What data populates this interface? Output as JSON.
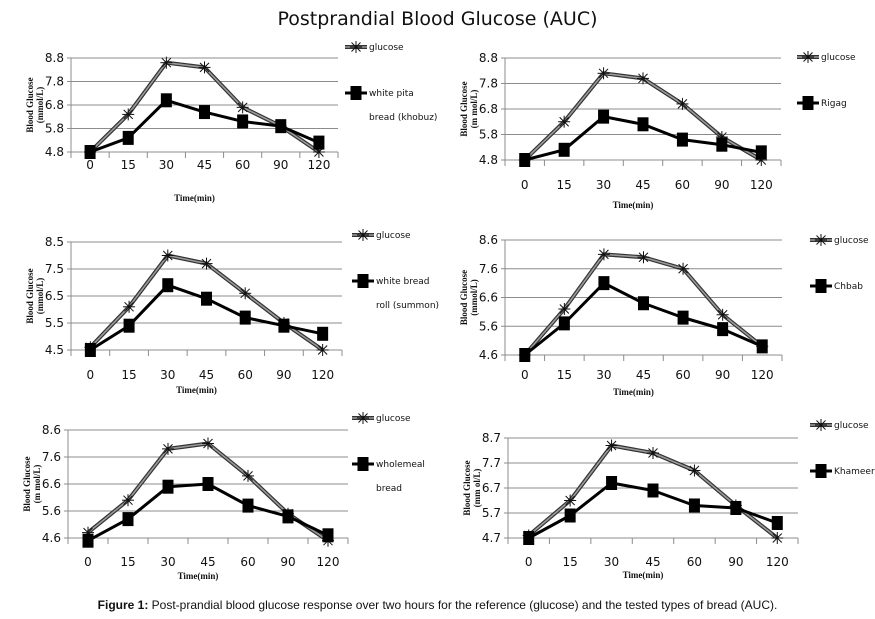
{
  "title": "Postprandial Blood Glucose (AUC)",
  "caption": {
    "label": "Figure 1:",
    "text": " Post-prandial blood glucose response over two hours for the reference (glucose) and the tested types of bread (AUC)."
  },
  "colors": {
    "glucose_line": "#6b6b6b",
    "bread_line": "#000000",
    "grid": "#8c8c8c",
    "axis": "#8c8c8c"
  },
  "chart_data": [
    {
      "type": "line",
      "panel": "top-left",
      "categories": [
        "0",
        "15",
        "30",
        "45",
        "60",
        "90",
        "120"
      ],
      "xlabel": "Time(min)",
      "ylabel": [
        "Blood Glucose",
        "(mmol/L)"
      ],
      "yticks": [
        "4.8",
        "5.8",
        "6.8",
        "7.8",
        "8.8"
      ],
      "ylim": [
        4.8,
        8.8
      ],
      "grid": true,
      "legend_position": "right",
      "series": [
        {
          "name": "glucose",
          "marker": "asterisk",
          "values": [
            4.8,
            6.4,
            8.6,
            8.4,
            6.7,
            5.9,
            4.8
          ]
        },
        {
          "name": "white pita bread (khobuz)",
          "legend_lines": [
            "white pita",
            "bread (khobuz)"
          ],
          "marker": "square",
          "values": [
            4.8,
            5.4,
            7.0,
            6.5,
            6.1,
            5.9,
            5.2
          ]
        }
      ]
    },
    {
      "type": "line",
      "panel": "top-right",
      "categories": [
        "0",
        "15",
        "30",
        "45",
        "60",
        "90",
        "120"
      ],
      "xlabel": "Time(min)",
      "ylabel": [
        "Blood Glucose",
        "(m mol/L)"
      ],
      "yticks": [
        "4.8",
        "5.8",
        "6.8",
        "7.8",
        "8.8"
      ],
      "ylim": [
        4.8,
        8.8
      ],
      "grid": true,
      "legend_position": "right",
      "series": [
        {
          "name": "glucose",
          "marker": "asterisk",
          "values": [
            4.8,
            6.3,
            8.2,
            8.0,
            7.0,
            5.7,
            4.8
          ]
        },
        {
          "name": "Rigag",
          "legend_lines": [
            "Rigag"
          ],
          "marker": "square",
          "values": [
            4.8,
            5.2,
            6.5,
            6.2,
            5.6,
            5.4,
            5.1
          ]
        }
      ]
    },
    {
      "type": "line",
      "panel": "middle-left",
      "categories": [
        "0",
        "15",
        "30",
        "45",
        "60",
        "90",
        "120"
      ],
      "xlabel": "Time(min)",
      "ylabel": [
        "Blood Glucose",
        "(mmol/L)"
      ],
      "yticks": [
        "4.5",
        "5.5",
        "6.5",
        "7.5",
        "8.5"
      ],
      "ylim": [
        4.5,
        8.5
      ],
      "grid": true,
      "legend_position": "right",
      "series": [
        {
          "name": "glucose",
          "marker": "asterisk",
          "values": [
            4.6,
            6.1,
            8.0,
            7.7,
            6.6,
            5.5,
            4.5
          ]
        },
        {
          "name": "white bread roll (summon)",
          "legend_lines": [
            "white bread",
            "roll (summon)"
          ],
          "marker": "square",
          "values": [
            4.5,
            5.4,
            6.9,
            6.4,
            5.7,
            5.4,
            5.1
          ]
        }
      ]
    },
    {
      "type": "line",
      "panel": "middle-right",
      "categories": [
        "0",
        "15",
        "30",
        "45",
        "60",
        "90",
        "120"
      ],
      "xlabel": "Time(min)",
      "ylabel": [
        "Blood Glucose",
        "(mmol/L)"
      ],
      "yticks": [
        "4.6",
        "5.6",
        "6.6",
        "7.6",
        "8.6"
      ],
      "ylim": [
        4.6,
        8.6
      ],
      "grid": true,
      "legend_position": "right",
      "series": [
        {
          "name": "glucose",
          "marker": "asterisk",
          "values": [
            4.6,
            6.2,
            8.1,
            8.0,
            7.6,
            6.0,
            4.9
          ]
        },
        {
          "name": "Chbab",
          "legend_lines": [
            "Chbab"
          ],
          "marker": "square",
          "values": [
            4.6,
            5.7,
            7.1,
            6.4,
            5.9,
            5.5,
            4.9
          ]
        }
      ]
    },
    {
      "type": "line",
      "panel": "bottom-left",
      "categories": [
        "0",
        "15",
        "30",
        "45",
        "60",
        "90",
        "120"
      ],
      "xlabel": "Time(min)",
      "ylabel": [
        "Blood Glucose",
        "(m mol/L)"
      ],
      "yticks": [
        "4.6",
        "5.6",
        "6.6",
        "7.6",
        "8.6"
      ],
      "ylim": [
        4.6,
        8.6
      ],
      "grid": true,
      "legend_position": "right",
      "series": [
        {
          "name": "glucose",
          "marker": "asterisk",
          "values": [
            4.8,
            6.0,
            7.9,
            8.1,
            6.9,
            5.5,
            4.5
          ]
        },
        {
          "name": "wholemeal bread",
          "legend_lines": [
            "wholemeal",
            "bread"
          ],
          "marker": "square",
          "values": [
            4.5,
            5.3,
            6.5,
            6.6,
            5.8,
            5.4,
            4.7
          ]
        }
      ]
    },
    {
      "type": "line",
      "panel": "bottom-right",
      "categories": [
        "0",
        "15",
        "30",
        "45",
        "60",
        "90",
        "120"
      ],
      "xlabel": "Time(min)",
      "ylabel": [
        "Blood Glucose",
        "(mm ol/L)"
      ],
      "yticks": [
        "4.7",
        "5.7",
        "6.7",
        "7.7",
        "8.7"
      ],
      "ylim": [
        4.7,
        8.7
      ],
      "grid": true,
      "legend_position": "right",
      "series": [
        {
          "name": "glucose",
          "marker": "asterisk",
          "values": [
            4.8,
            6.2,
            8.4,
            8.1,
            7.4,
            6.0,
            4.7
          ]
        },
        {
          "name": "Khameer",
          "legend_lines": [
            "Khameer"
          ],
          "marker": "square",
          "values": [
            4.7,
            5.6,
            6.9,
            6.6,
            6.0,
            5.9,
            5.3
          ]
        }
      ]
    }
  ]
}
